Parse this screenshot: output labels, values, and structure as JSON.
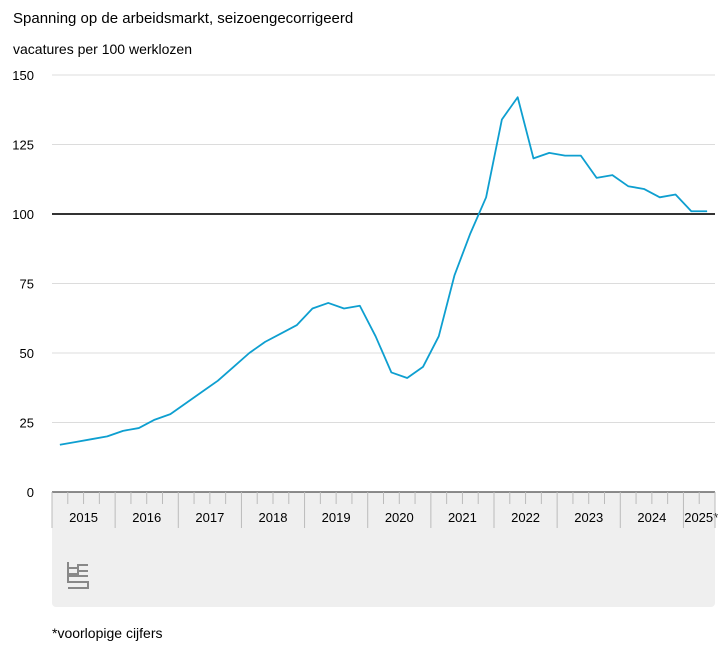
{
  "chart_data": {
    "type": "line",
    "title": "Spanning op de arbeidsmarkt, seizoengecorrigeerd",
    "ylabel": "vacatures per 100 werklozen",
    "ylim": [
      0,
      150
    ],
    "yticks": [
      0,
      25,
      50,
      75,
      100,
      125,
      150
    ],
    "reference_line": 100,
    "grid": true,
    "categories": [
      "2015",
      "2016",
      "2017",
      "2018",
      "2019",
      "2020",
      "2021",
      "2022",
      "2023",
      "2024",
      "2025*"
    ],
    "x": [
      "2015Q1",
      "2015Q2",
      "2015Q3",
      "2015Q4",
      "2016Q1",
      "2016Q2",
      "2016Q3",
      "2016Q4",
      "2017Q1",
      "2017Q2",
      "2017Q3",
      "2017Q4",
      "2018Q1",
      "2018Q2",
      "2018Q3",
      "2018Q4",
      "2019Q1",
      "2019Q2",
      "2019Q3",
      "2019Q4",
      "2020Q1",
      "2020Q2",
      "2020Q3",
      "2020Q4",
      "2021Q1",
      "2021Q2",
      "2021Q3",
      "2021Q4",
      "2022Q1",
      "2022Q2",
      "2022Q3",
      "2022Q4",
      "2023Q1",
      "2023Q2",
      "2023Q3",
      "2023Q4",
      "2024Q1",
      "2024Q2",
      "2024Q3",
      "2024Q4",
      "2025Q1",
      "2025Q2"
    ],
    "values": [
      17,
      18,
      19,
      20,
      22,
      23,
      26,
      28,
      32,
      36,
      40,
      45,
      50,
      54,
      57,
      60,
      66,
      68,
      66,
      67,
      56,
      43,
      41,
      45,
      56,
      78,
      93,
      106,
      134,
      142,
      120,
      122,
      121,
      121,
      113,
      114,
      110,
      109,
      106,
      107,
      101,
      101
    ],
    "line_color": "#0e9fd0"
  },
  "footnote": "*voorlopige cijfers",
  "logo": "cbs"
}
